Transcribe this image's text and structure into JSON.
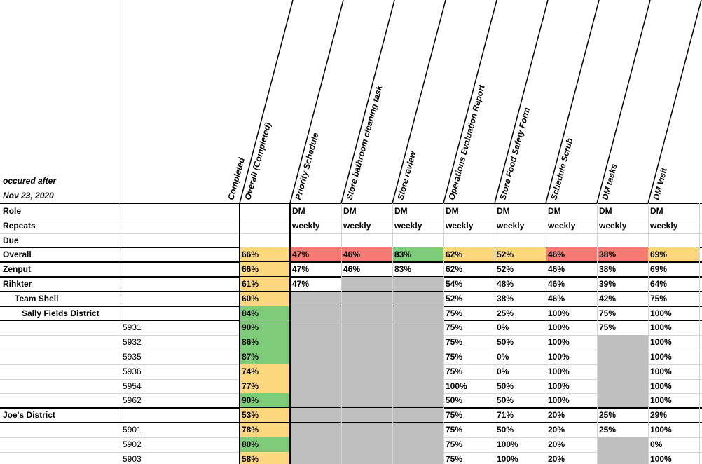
{
  "header": {
    "occurred_label": "occured after",
    "date": "Nov 23, 2020",
    "columns": [
      "Completed",
      "Overall (Completed)",
      "Priority Schedule",
      "Store bathroom cleaning task",
      "Store review",
      "Operations Evaluation Report",
      "Store Food Safety Form",
      "Schedule Scrub",
      "DM tasks",
      "DM  Visit"
    ]
  },
  "rows": [
    {
      "label": "Role",
      "completed": null,
      "completed_fill": null,
      "cells": [
        "DM",
        "DM",
        "DM",
        "DM",
        "DM",
        "DM",
        "DM",
        "DM"
      ],
      "fills": [
        null,
        null,
        null,
        null,
        null,
        null,
        null,
        null
      ]
    },
    {
      "label": "Repeats",
      "completed": null,
      "completed_fill": null,
      "cells": [
        "weekly",
        "weekly",
        "weekly",
        "weekly",
        "weekly",
        "weekly",
        "weekly",
        "weekly"
      ],
      "fills": [
        null,
        null,
        null,
        null,
        null,
        null,
        null,
        null
      ]
    },
    {
      "label": "Due",
      "completed": null,
      "completed_fill": null,
      "cells": [
        null,
        null,
        null,
        null,
        null,
        null,
        null,
        null
      ],
      "fills": [
        null,
        null,
        null,
        null,
        null,
        null,
        null,
        null
      ]
    },
    {
      "label": "Overall",
      "completed": "66%",
      "completed_fill": "#fcd77f",
      "cells": [
        "47%",
        "46%",
        "83%",
        "62%",
        "52%",
        "46%",
        "38%",
        "69%"
      ],
      "fills": [
        "#f47a72",
        "#f47a72",
        "#7ecb79",
        "#fcd77f",
        "#fcd77f",
        "#f47a72",
        "#f47a72",
        "#fcd77f"
      ]
    },
    {
      "label": "Zenput",
      "completed": "66%",
      "completed_fill": "#fcd77f",
      "cells": [
        "47%",
        "46%",
        "83%",
        "62%",
        "52%",
        "46%",
        "38%",
        "69%"
      ],
      "fills": [
        null,
        null,
        null,
        null,
        null,
        null,
        null,
        null
      ]
    },
    {
      "label": "Rihkter",
      "completed": "61%",
      "completed_fill": "#fcd77f",
      "cells": [
        "47%",
        null,
        null,
        "54%",
        "48%",
        "46%",
        "39%",
        "64%"
      ],
      "fills": [
        null,
        "#bfbfbf",
        "#bfbfbf",
        null,
        null,
        null,
        null,
        null
      ]
    },
    {
      "label": "Team Shell",
      "completed": "60%",
      "completed_fill": "#fcd77f",
      "cells": [
        null,
        null,
        null,
        "52%",
        "38%",
        "46%",
        "42%",
        "75%"
      ],
      "fills": [
        "#bfbfbf",
        "#bfbfbf",
        "#bfbfbf",
        null,
        null,
        null,
        null,
        null
      ]
    },
    {
      "label": "Sally Fields District",
      "completed": "84%",
      "completed_fill": "#7ecb79",
      "cells": [
        null,
        null,
        null,
        "75%",
        "25%",
        "100%",
        "75%",
        "100%"
      ],
      "fills": [
        "#bfbfbf",
        "#bfbfbf",
        "#bfbfbf",
        null,
        null,
        null,
        null,
        null
      ]
    },
    {
      "store": "5931",
      "completed": "90%",
      "completed_fill": "#7ecb79",
      "cells": [
        null,
        null,
        null,
        "75%",
        "0%",
        "100%",
        "75%",
        "100%"
      ],
      "fills": [
        "#bfbfbf",
        "#bfbfbf",
        "#bfbfbf",
        null,
        null,
        null,
        null,
        null
      ]
    },
    {
      "store": "5932",
      "completed": "86%",
      "completed_fill": "#7ecb79",
      "cells": [
        null,
        null,
        null,
        "75%",
        "50%",
        "100%",
        null,
        "100%"
      ],
      "fills": [
        "#bfbfbf",
        "#bfbfbf",
        "#bfbfbf",
        null,
        null,
        null,
        "#bfbfbf",
        null
      ]
    },
    {
      "store": "5935",
      "completed": "87%",
      "completed_fill": "#7ecb79",
      "cells": [
        null,
        null,
        null,
        "75%",
        "0%",
        "100%",
        null,
        "100%"
      ],
      "fills": [
        "#bfbfbf",
        "#bfbfbf",
        "#bfbfbf",
        null,
        null,
        null,
        "#bfbfbf",
        null
      ]
    },
    {
      "store": "5936",
      "completed": "74%",
      "completed_fill": "#fcd77f",
      "cells": [
        null,
        null,
        null,
        "75%",
        "0%",
        "100%",
        null,
        "100%"
      ],
      "fills": [
        "#bfbfbf",
        "#bfbfbf",
        "#bfbfbf",
        null,
        null,
        null,
        "#bfbfbf",
        null
      ]
    },
    {
      "store": "5954",
      "completed": "77%",
      "completed_fill": "#fcd77f",
      "cells": [
        null,
        null,
        null,
        "100%",
        "50%",
        "100%",
        null,
        "100%"
      ],
      "fills": [
        "#bfbfbf",
        "#bfbfbf",
        "#bfbfbf",
        null,
        null,
        null,
        "#bfbfbf",
        null
      ]
    },
    {
      "store": "5962",
      "completed": "90%",
      "completed_fill": "#7ecb79",
      "cells": [
        null,
        null,
        null,
        "50%",
        "50%",
        "100%",
        null,
        "100%"
      ],
      "fills": [
        "#bfbfbf",
        "#bfbfbf",
        "#bfbfbf",
        null,
        null,
        null,
        "#bfbfbf",
        null
      ]
    },
    {
      "label": "Joe's District",
      "completed": "53%",
      "completed_fill": "#fcd77f",
      "cells": [
        null,
        null,
        null,
        "75%",
        "71%",
        "20%",
        "25%",
        "29%"
      ],
      "fills": [
        "#bfbfbf",
        "#bfbfbf",
        "#bfbfbf",
        null,
        null,
        null,
        null,
        null
      ]
    },
    {
      "store": "5901",
      "completed": "78%",
      "completed_fill": "#fcd77f",
      "cells": [
        null,
        null,
        null,
        "75%",
        "50%",
        "20%",
        "25%",
        "100%"
      ],
      "fills": [
        "#bfbfbf",
        "#bfbfbf",
        "#bfbfbf",
        null,
        null,
        null,
        null,
        null
      ]
    },
    {
      "store": "5902",
      "completed": "80%",
      "completed_fill": "#7ecb79",
      "cells": [
        null,
        null,
        null,
        "75%",
        "100%",
        "20%",
        null,
        "0%"
      ],
      "fills": [
        "#bfbfbf",
        "#bfbfbf",
        "#bfbfbf",
        null,
        null,
        null,
        "#bfbfbf",
        null
      ]
    },
    {
      "store": "5903",
      "completed": "58%",
      "completed_fill": "#fcd77f",
      "cells": [
        null,
        null,
        null,
        "75%",
        "100%",
        "20%",
        null,
        "100%"
      ],
      "fills": [
        "#bfbfbf",
        "#bfbfbf",
        "#bfbfbf",
        null,
        null,
        null,
        "#bfbfbf",
        null
      ]
    }
  ]
}
